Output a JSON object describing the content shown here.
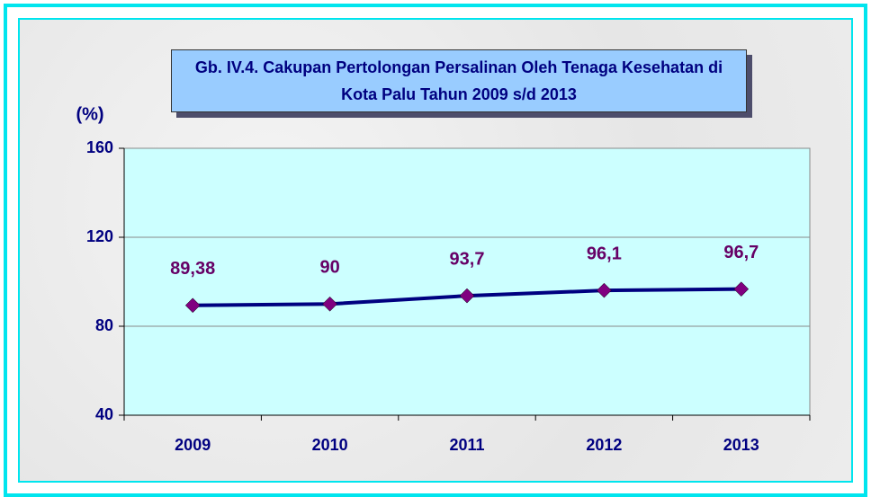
{
  "chart_data": {
    "type": "line",
    "title": "Gb. IV.4. Cakupan Pertolongan Persalinan Oleh Tenaga Kesehatan di Kota Palu Tahun 2009 s/d 2013",
    "ylabel": "(%)",
    "categories": [
      "2009",
      "2010",
      "2011",
      "2012",
      "2013"
    ],
    "series": [
      {
        "color": "#000080",
        "marker_color": "#800080",
        "values": [
          89.38,
          90,
          93.7,
          96.1,
          96.7
        ],
        "value_labels": [
          "89,38",
          "90",
          "93,7",
          "96,1",
          "96,7"
        ]
      }
    ],
    "ylim": [
      40,
      160
    ],
    "yticks": [
      40,
      80,
      120,
      160
    ],
    "grid": true,
    "plot_background": "#ccffff"
  }
}
